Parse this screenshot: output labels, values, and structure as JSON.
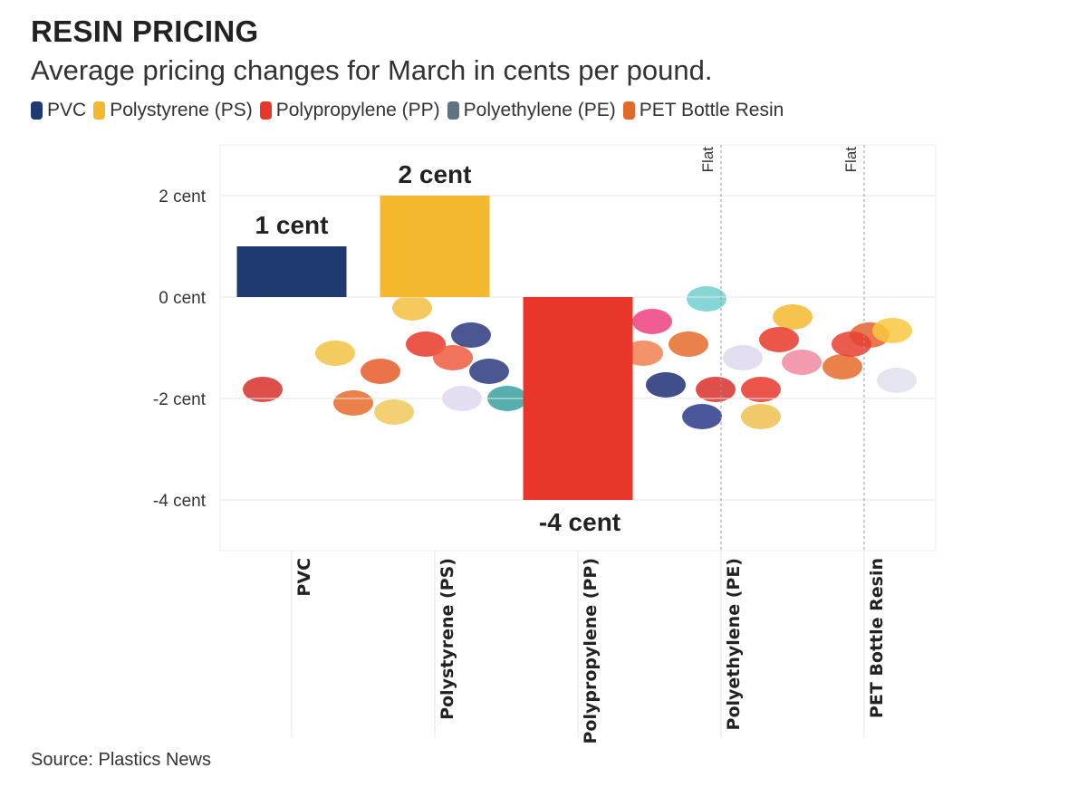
{
  "chart_data": {
    "type": "bar",
    "title": "RESIN PRICING",
    "subtitle": "Average pricing changes for March in cents per pound.",
    "categories": [
      "PVC",
      "Polystyrene (PS)",
      "Polypropylene (PP)",
      "Polyethylene (PE)",
      "PET Bottle Resin"
    ],
    "values": [
      1,
      2,
      -4,
      0,
      0
    ],
    "data_labels": [
      "1 cent",
      "2 cent",
      "-4 cent",
      "Flat",
      "Flat"
    ],
    "colors": [
      "#1f3a6e",
      "#f4b82e",
      "#e8372a",
      "#5f7380",
      "#e06a2a"
    ],
    "legend": [
      "PVC",
      "Polystyrene (PS)",
      "Polypropylene (PP)",
      "Polyethylene (PE)",
      "PET Bottle Resin"
    ],
    "legend_placement": "top-left",
    "yticks": [
      2,
      0,
      -2,
      -4
    ],
    "ytick_labels": [
      "2 cent",
      "0 cent",
      "-2 cent",
      "-4 cent"
    ],
    "ylim": [
      -5,
      3
    ],
    "xlabel": "",
    "ylabel": "",
    "grid": true,
    "background": "photo of colorful plastic pellets"
  },
  "source": "Source: Plastics News"
}
